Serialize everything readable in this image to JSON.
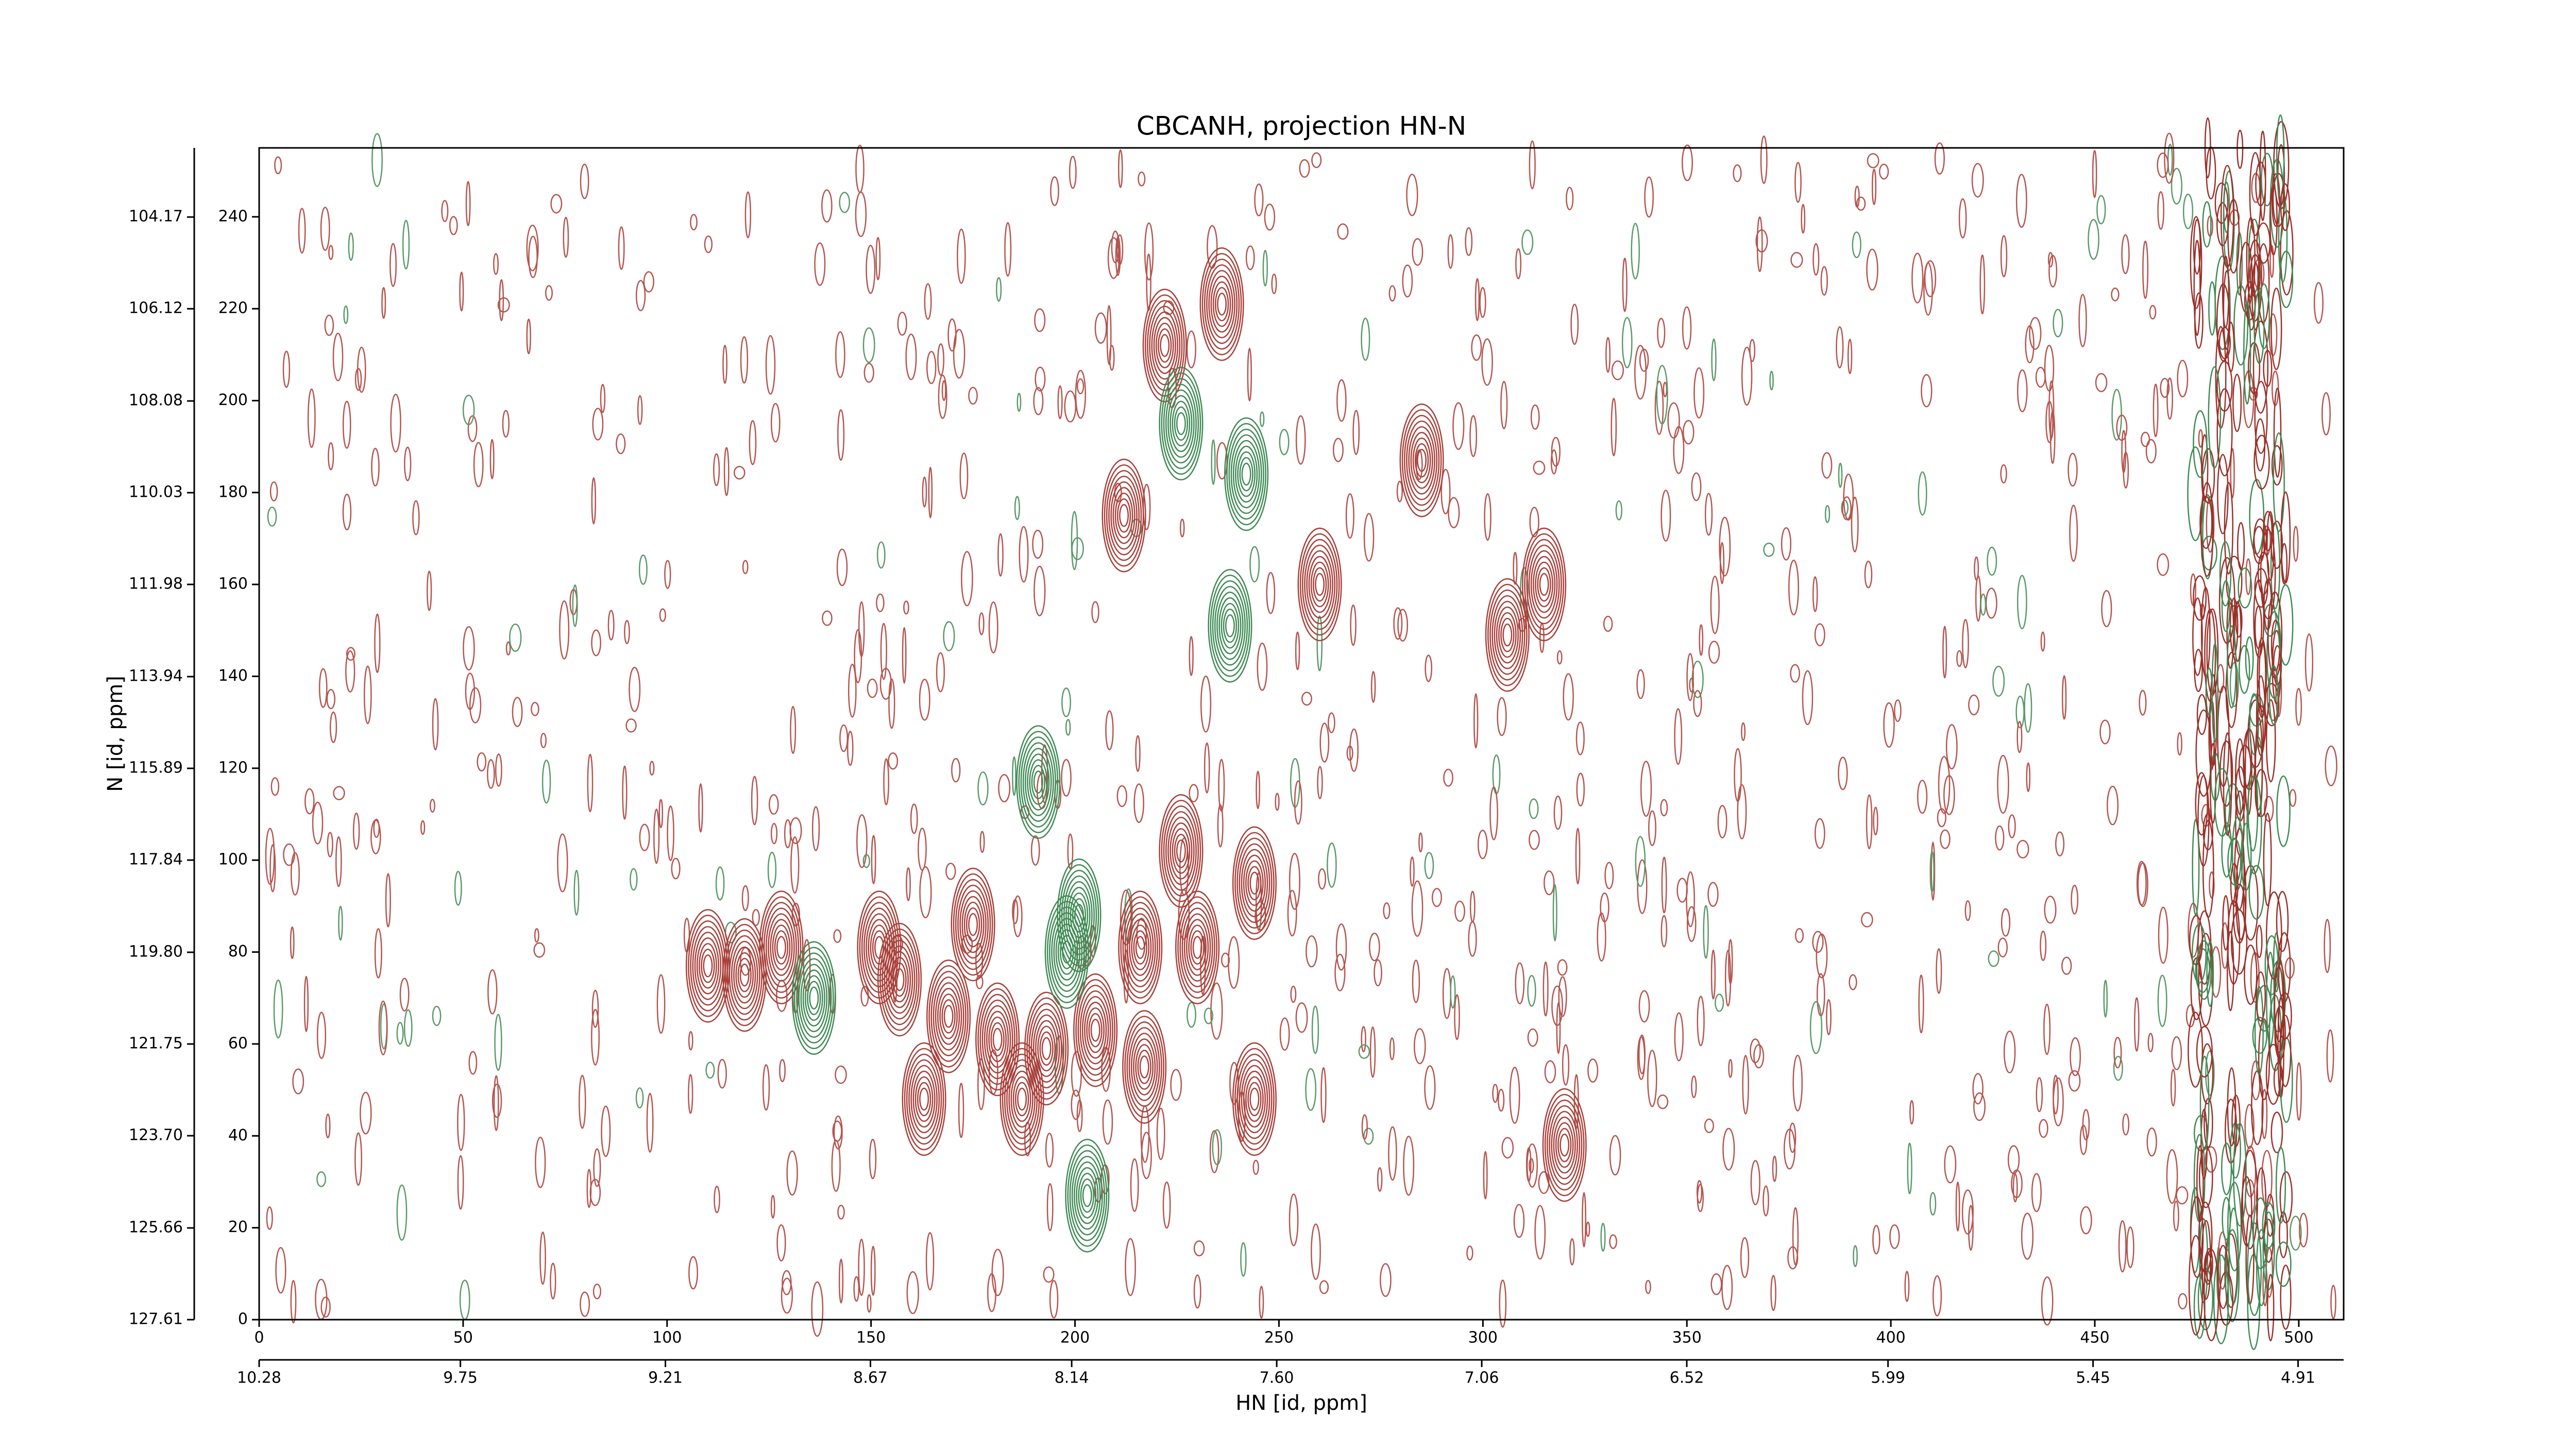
{
  "chart_data": {
    "type": "contour",
    "title": "CBCANH, projection HN-N",
    "xlabel": "HN [id, ppm]",
    "ylabel": "N [id, ppm]",
    "xlim": [
      0,
      511
    ],
    "xticks": [
      0,
      50,
      100,
      150,
      200,
      250,
      300,
      350,
      400,
      450,
      500
    ],
    "x2lim": [
      10.28,
      4.79
    ],
    "x2ticks": [
      10.28,
      9.75,
      9.21,
      8.67,
      8.14,
      {
        "value": 7.6,
        "label": "7.60"
      },
      7.06,
      6.52,
      5.99,
      5.45,
      4.91
    ],
    "ylim": [
      0,
      255
    ],
    "yticks": [
      0,
      20,
      40,
      60,
      80,
      100,
      120,
      140,
      160,
      180,
      200,
      220,
      240
    ],
    "y2lim": [
      127.61,
      102.7
    ],
    "y2ticks": [
      127.61,
      125.66,
      {
        "value": 123.7,
        "label": "123.70"
      },
      121.75,
      {
        "value": 119.8,
        "label": "119.80"
      },
      117.84,
      115.89,
      113.94,
      111.98,
      110.03,
      108.08,
      106.12,
      104.17
    ],
    "peaks": [
      {
        "color": "#a8403a",
        "x": [
          110,
          119,
          128,
          152,
          157,
          175,
          169,
          181,
          187,
          193,
          163,
          216,
          226,
          230,
          244,
          244,
          222,
          236,
          212,
          260,
          315,
          320,
          205,
          217,
          285,
          306
        ],
        "y": [
          77,
          75,
          81,
          81,
          74,
          86,
          66,
          61,
          48,
          59,
          48,
          81,
          102,
          81,
          95,
          48,
          212,
          221,
          175,
          160,
          160,
          38,
          63,
          55,
          187,
          149
        ]
      },
      {
        "color": "#3f8a55",
        "x": [
          191,
          201,
          203,
          242,
          238,
          136,
          226,
          198
        ],
        "y": [
          117,
          88,
          27,
          184,
          151,
          70,
          195,
          80
        ]
      }
    ]
  }
}
